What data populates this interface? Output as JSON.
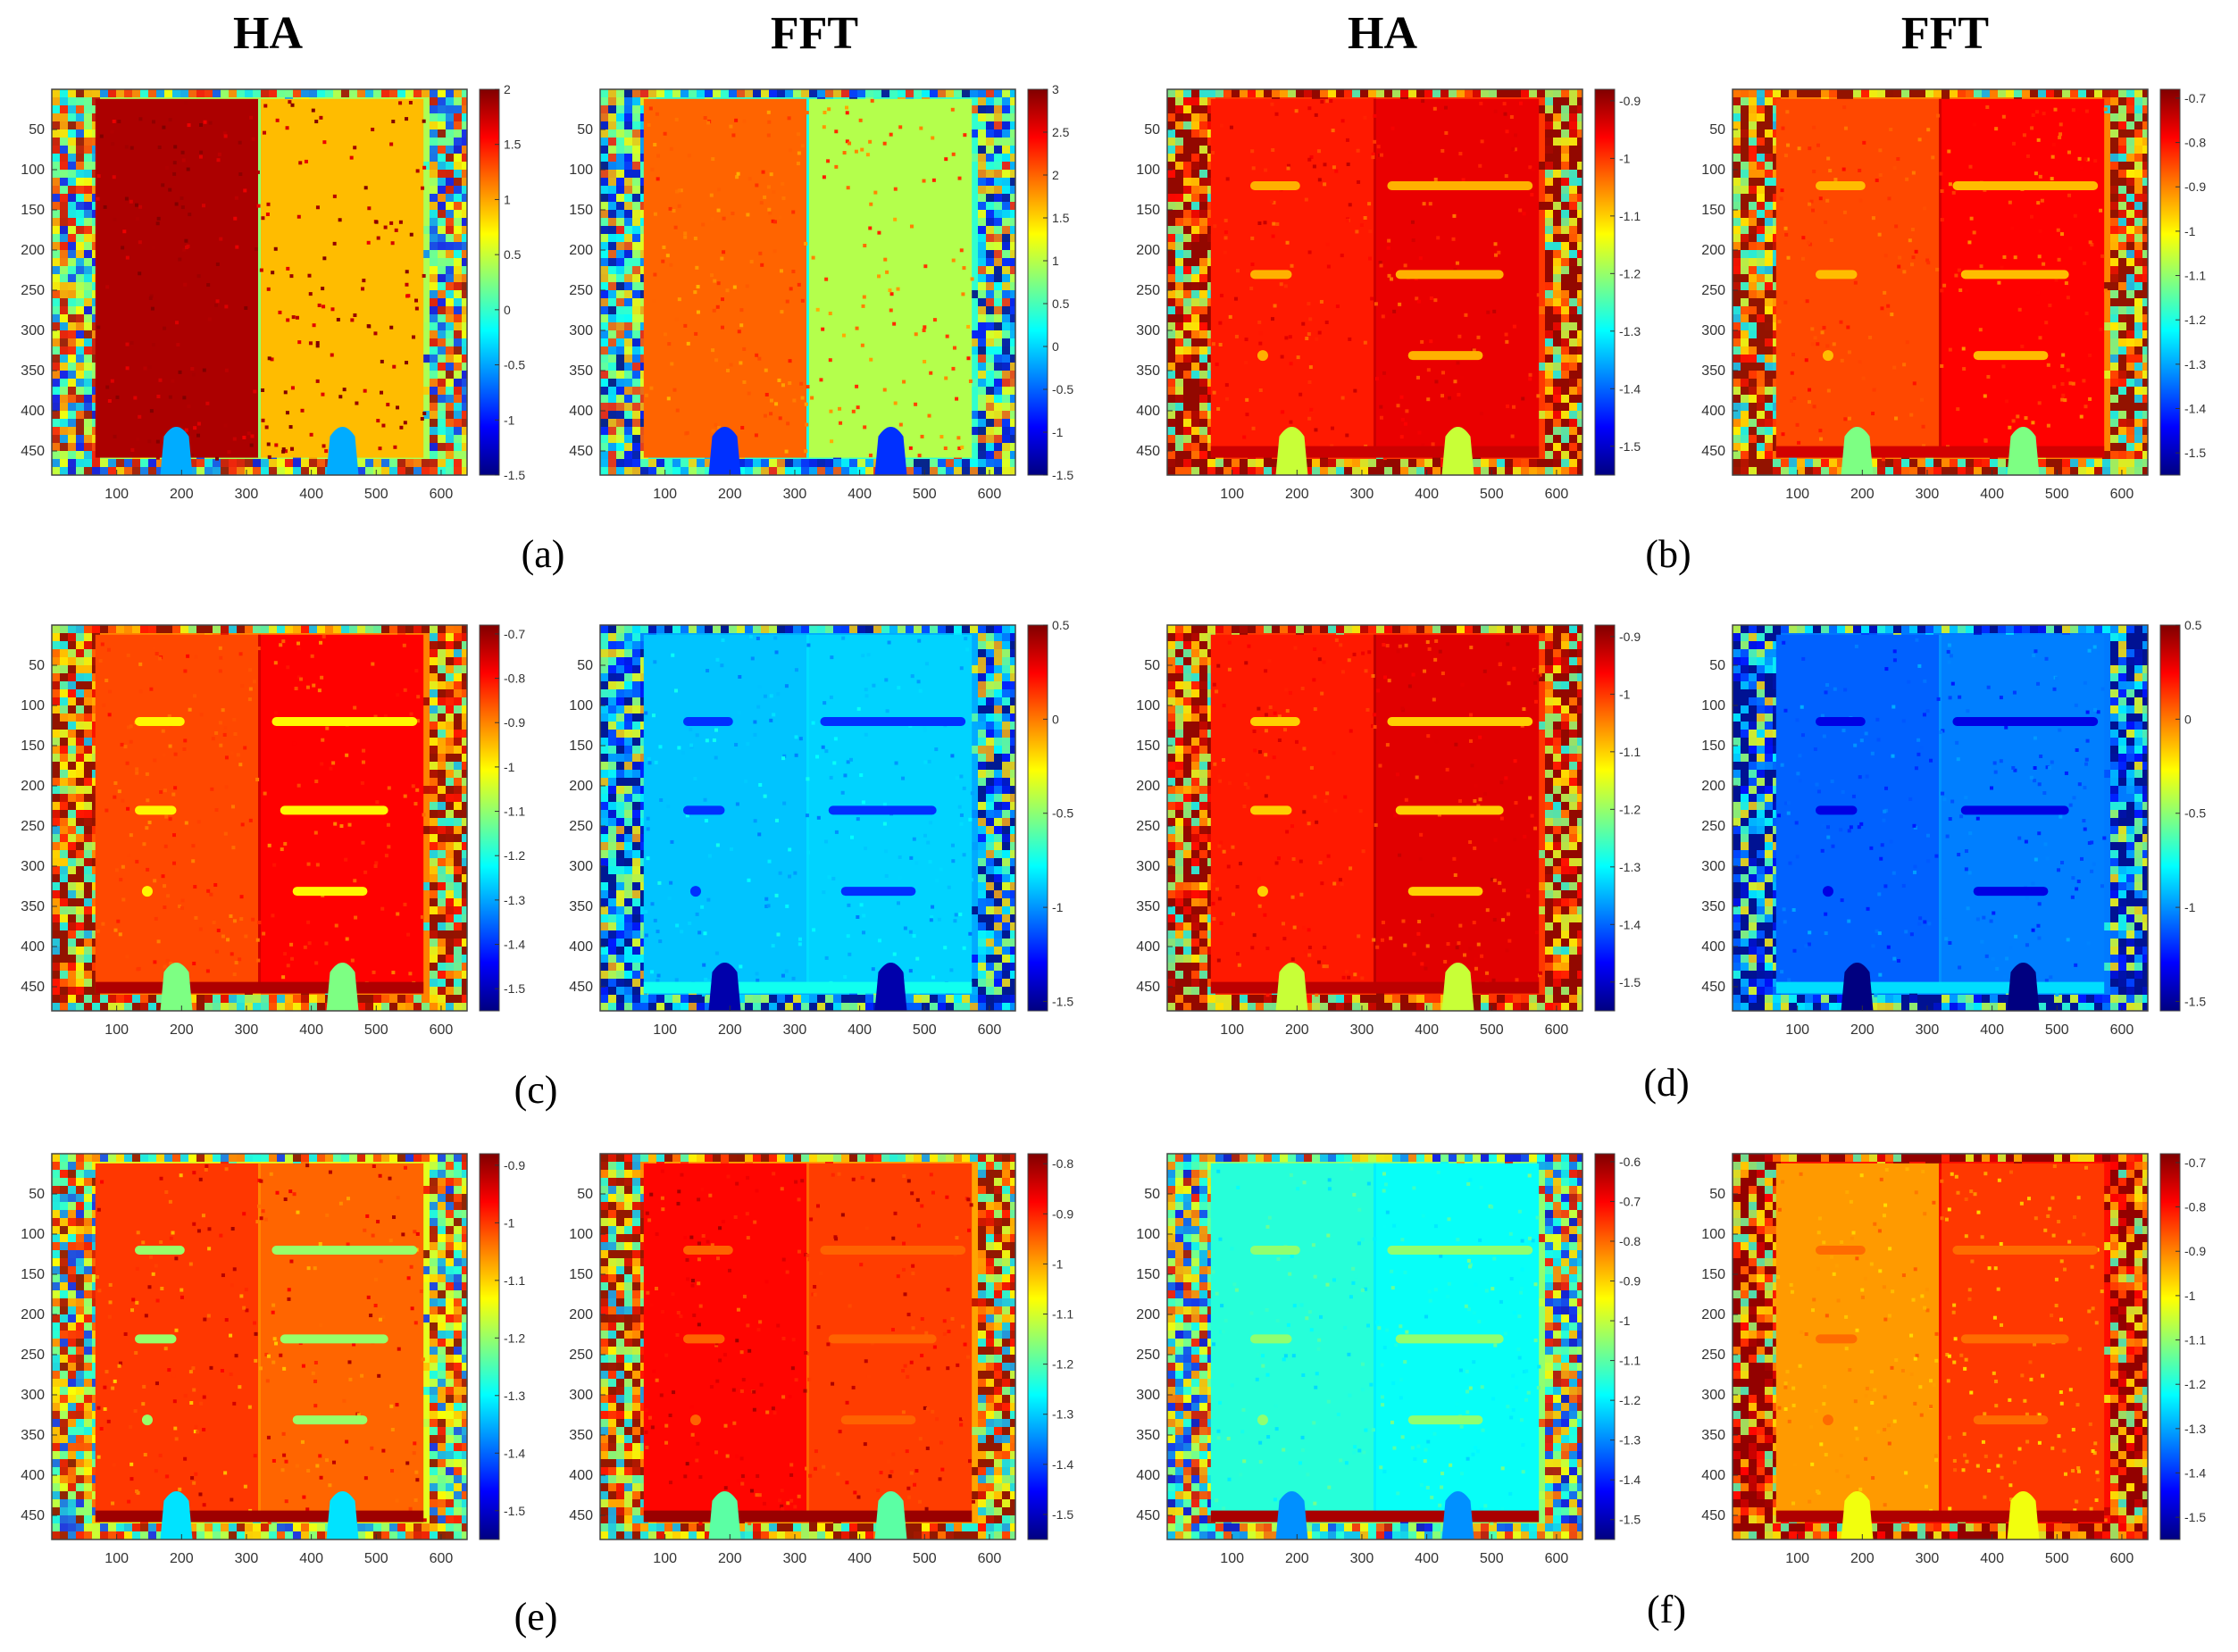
{
  "headers": [
    "HA",
    "FFT",
    "HA",
    "FFT"
  ],
  "sublabels": [
    "(a)",
    "(b)",
    "(c)",
    "(d)",
    "(e)",
    "(f)"
  ],
  "colors": {
    "colormap": "jet",
    "jet_stops": [
      "#000080",
      "#0000ff",
      "#0080ff",
      "#00ffff",
      "#80ff80",
      "#ffff00",
      "#ff8000",
      "#ff0000",
      "#800000"
    ]
  },
  "chart_data": [
    {
      "type": "heatmap",
      "panel": "a-HA",
      "title": "HA",
      "x_ticks": [
        "100",
        "200",
        "300",
        "400",
        "500",
        "600"
      ],
      "y_ticks": [
        "50",
        "100",
        "150",
        "200",
        "250",
        "300",
        "350",
        "400",
        "450"
      ],
      "colorbar_ticks": [
        "2",
        "1.5",
        "1",
        "0.5",
        "0",
        "-0.5",
        "-1",
        "-1.5"
      ],
      "clim": [
        -1.5,
        2
      ],
      "plate_value": 1.85,
      "background_value": 0.4,
      "edge_value": 0.3,
      "defect_value": 1.85,
      "noise": 0.12,
      "defects": [],
      "bottom_band_value": null
    },
    {
      "type": "heatmap",
      "panel": "a-FFT",
      "title": "FFT",
      "x_ticks": [
        "100",
        "200",
        "300",
        "400",
        "500",
        "600"
      ],
      "y_ticks": [
        "50",
        "100",
        "150",
        "200",
        "250",
        "300",
        "350",
        "400",
        "450"
      ],
      "colorbar_ticks": [
        "3",
        "2.5",
        "2",
        "1.5",
        "1",
        "0.5",
        "0",
        "-0.5",
        "-1",
        "-1.5"
      ],
      "clim": [
        -1.5,
        3
      ],
      "plate_value": 2.0,
      "background_value": 0.4,
      "edge_value": 0.3,
      "defect_value": 2.0,
      "noise": 0.18,
      "defects": [],
      "bottom_band_value": null
    },
    {
      "type": "heatmap",
      "panel": "b-HA",
      "title": "HA",
      "x_ticks": [
        "100",
        "200",
        "300",
        "400",
        "500",
        "600"
      ],
      "y_ticks": [
        "50",
        "100",
        "150",
        "200",
        "250",
        "300",
        "350",
        "400",
        "450"
      ],
      "colorbar_ticks": [
        "-0.9",
        "-1",
        "-1.1",
        "-1.2",
        "-1.3",
        "-1.4",
        "-1.5"
      ],
      "clim": [
        -1.55,
        -0.88
      ],
      "plate_value": -0.98,
      "background_value": -1.0,
      "edge_value": -0.93,
      "defect_value": -1.08,
      "noise": 0.03,
      "defects": [
        "slots"
      ],
      "bottom_band_value": -0.93
    },
    {
      "type": "heatmap",
      "panel": "b-FFT",
      "title": "FFT",
      "x_ticks": [
        "100",
        "200",
        "300",
        "400",
        "500",
        "600"
      ],
      "y_ticks": [
        "50",
        "100",
        "150",
        "200",
        "250",
        "300",
        "350",
        "400",
        "450"
      ],
      "colorbar_ticks": [
        "-0.7",
        "-0.8",
        "-0.9",
        "-1",
        "-1.1",
        "-1.2",
        "-1.3",
        "-1.4",
        "-1.5"
      ],
      "clim": [
        -1.55,
        -0.68
      ],
      "plate_value": -0.85,
      "background_value": -0.9,
      "edge_value": -0.75,
      "defect_value": -0.95,
      "noise": 0.03,
      "defects": [
        "slots"
      ],
      "bottom_band_value": -0.75
    },
    {
      "type": "heatmap",
      "panel": "c-HA",
      "title": "",
      "x_ticks": [
        "100",
        "200",
        "300",
        "400",
        "500",
        "600"
      ],
      "y_ticks": [
        "50",
        "100",
        "150",
        "200",
        "250",
        "300",
        "350",
        "400",
        "450"
      ],
      "colorbar_ticks": [
        "-0.7",
        "-0.8",
        "-0.9",
        "-1",
        "-1.1",
        "-1.2",
        "-1.3",
        "-1.4",
        "-1.5"
      ],
      "clim": [
        -1.55,
        -0.68
      ],
      "plate_value": -0.85,
      "background_value": -0.9,
      "edge_value": -0.75,
      "defect_value": -1.0,
      "noise": 0.03,
      "defects": [
        "slots"
      ],
      "bottom_band_value": -0.72
    },
    {
      "type": "heatmap",
      "panel": "c-FFT",
      "title": "",
      "x_ticks": [
        "100",
        "200",
        "300",
        "400",
        "500",
        "600"
      ],
      "y_ticks": [
        "50",
        "100",
        "150",
        "200",
        "250",
        "300",
        "350",
        "400",
        "450"
      ],
      "colorbar_ticks": [
        "0.5",
        "0",
        "-0.5",
        "-1",
        "-1.5"
      ],
      "clim": [
        -1.55,
        0.5
      ],
      "plate_value": -0.9,
      "background_value": -0.95,
      "edge_value": -0.85,
      "defect_value": -1.2,
      "noise": 0.08,
      "defects": [
        "slots"
      ],
      "bottom_band_value": -0.75
    },
    {
      "type": "heatmap",
      "panel": "d-HA",
      "title": "",
      "x_ticks": [
        "100",
        "200",
        "300",
        "400",
        "500",
        "600"
      ],
      "y_ticks": [
        "50",
        "100",
        "150",
        "200",
        "250",
        "300",
        "350",
        "400",
        "450"
      ],
      "colorbar_ticks": [
        "-0.9",
        "-1",
        "-1.1",
        "-1.2",
        "-1.3",
        "-1.4",
        "-1.5"
      ],
      "clim": [
        -1.55,
        -0.88
      ],
      "plate_value": -0.98,
      "background_value": -1.0,
      "edge_value": -0.92,
      "defect_value": -1.1,
      "noise": 0.03,
      "defects": [
        "slots"
      ],
      "bottom_band_value": -0.92
    },
    {
      "type": "heatmap",
      "panel": "d-FFT",
      "title": "",
      "x_ticks": [
        "100",
        "200",
        "300",
        "400",
        "500",
        "600"
      ],
      "y_ticks": [
        "50",
        "100",
        "150",
        "200",
        "250",
        "300",
        "350",
        "400",
        "450"
      ],
      "colorbar_ticks": [
        "0.5",
        "0",
        "-0.5",
        "-1",
        "-1.5"
      ],
      "clim": [
        -1.55,
        0.5
      ],
      "plate_value": -1.1,
      "background_value": -1.05,
      "edge_value": -1.0,
      "defect_value": -1.35,
      "noise": 0.08,
      "defects": [
        "slots"
      ],
      "bottom_band_value": -0.85
    },
    {
      "type": "heatmap",
      "panel": "e-HA",
      "title": "",
      "x_ticks": [
        "100",
        "200",
        "300",
        "400",
        "500",
        "600"
      ],
      "y_ticks": [
        "50",
        "100",
        "150",
        "200",
        "250",
        "300",
        "350",
        "400",
        "450"
      ],
      "colorbar_ticks": [
        "-0.9",
        "-1",
        "-1.1",
        "-1.2",
        "-1.3",
        "-1.4",
        "-1.5"
      ],
      "clim": [
        -1.55,
        -0.88
      ],
      "plate_value": -1.0,
      "background_value": -1.15,
      "edge_value": -1.05,
      "defect_value": -1.2,
      "noise": 0.05,
      "defects": [
        "slots"
      ],
      "bottom_band_value": -0.9
    },
    {
      "type": "heatmap",
      "panel": "e-FFT",
      "title": "",
      "x_ticks": [
        "100",
        "200",
        "300",
        "400",
        "500",
        "600"
      ],
      "y_ticks": [
        "50",
        "100",
        "150",
        "200",
        "250",
        "300",
        "350",
        "400",
        "450"
      ],
      "colorbar_ticks": [
        "-0.8",
        "-0.9",
        "-1",
        "-1.1",
        "-1.2",
        "-1.3",
        "-1.4",
        "-1.5"
      ],
      "clim": [
        -1.55,
        -0.78
      ],
      "plate_value": -0.88,
      "background_value": -1.0,
      "edge_value": -0.95,
      "defect_value": -0.95,
      "noise": 0.04,
      "defects": [
        "slots"
      ],
      "bottom_band_value": -0.8
    },
    {
      "type": "heatmap",
      "panel": "f-HA",
      "title": "",
      "x_ticks": [
        "100",
        "200",
        "300",
        "400",
        "500",
        "600"
      ],
      "y_ticks": [
        "50",
        "100",
        "150",
        "200",
        "250",
        "300",
        "350",
        "400",
        "450"
      ],
      "colorbar_ticks": [
        "-0.6",
        "-0.7",
        "-0.8",
        "-0.9",
        "-1",
        "-1.1",
        "-1.2",
        "-1.3",
        "-1.4",
        "-1.5"
      ],
      "clim": [
        -1.55,
        -0.58
      ],
      "plate_value": -1.15,
      "background_value": -1.05,
      "edge_value": -1.2,
      "defect_value": -1.05,
      "noise": 0.04,
      "defects": [
        "slots"
      ],
      "bottom_band_value": -0.62
    },
    {
      "type": "heatmap",
      "panel": "f-FFT",
      "title": "",
      "x_ticks": [
        "100",
        "200",
        "300",
        "400",
        "500",
        "600"
      ],
      "y_ticks": [
        "50",
        "100",
        "150",
        "200",
        "250",
        "300",
        "350",
        "400",
        "450"
      ],
      "colorbar_ticks": [
        "-0.7",
        "-0.8",
        "-0.9",
        "-1",
        "-1.1",
        "-1.2",
        "-1.3",
        "-1.4",
        "-1.5"
      ],
      "clim": [
        -1.55,
        -0.68
      ],
      "plate_value": -0.92,
      "background_value": -0.8,
      "edge_value": -0.78,
      "defect_value": -0.88,
      "noise": 0.03,
      "defects": [
        "slots"
      ],
      "bottom_band_value": -0.72
    }
  ]
}
